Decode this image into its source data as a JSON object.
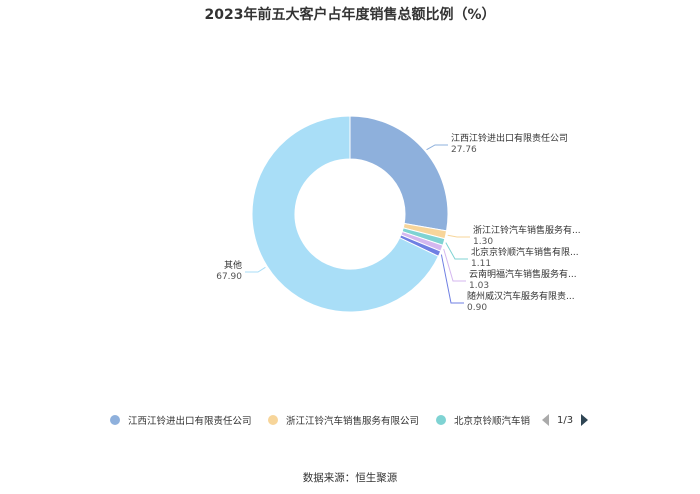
{
  "chart_data": {
    "type": "pie",
    "title": "2023年前五大客户占年度销售总额比例（%）",
    "slices": [
      {
        "label": "江西江铃进出口有限责任公司",
        "short": "江西江铃进出口有限责任公司",
        "value": 27.76,
        "value_text": "27.76",
        "color": "#8eb0dc"
      },
      {
        "label": "浙江江铃汽车销售服务有限公司",
        "short": "浙江江铃汽车销售服务有...",
        "value": 1.3,
        "value_text": "1.30",
        "color": "#f7d59a"
      },
      {
        "label": "北京京铃顺汽车销售有限公司",
        "short": "北京京铃顺汽车销售有限...",
        "value": 1.11,
        "value_text": "1.11",
        "color": "#7fd3d3"
      },
      {
        "label": "云南明福汽车销售服务有限公司",
        "short": "云南明福汽车销售服务有...",
        "value": 1.03,
        "value_text": "1.03",
        "color": "#d4b7ef"
      },
      {
        "label": "随州威汉汽车服务有限责任公司",
        "short": "随州威汉汽车服务有限责...",
        "value": 0.9,
        "value_text": "0.90",
        "color": "#6f7fe3"
      },
      {
        "label": "其他",
        "short": "其他",
        "value": 67.9,
        "value_text": "67.90",
        "color": "#a9def7"
      }
    ]
  },
  "legend": {
    "items": [
      {
        "label": "江西江铃进出口有限责任公司",
        "color": "#8eb0dc"
      },
      {
        "label": "浙江江铃汽车销售服务有限公司",
        "color": "#f7d59a"
      },
      {
        "label": "北京京铃顺汽车销",
        "color": "#7fd3d3"
      }
    ],
    "page": "1/3"
  },
  "source": "数据来源：恒生聚源"
}
